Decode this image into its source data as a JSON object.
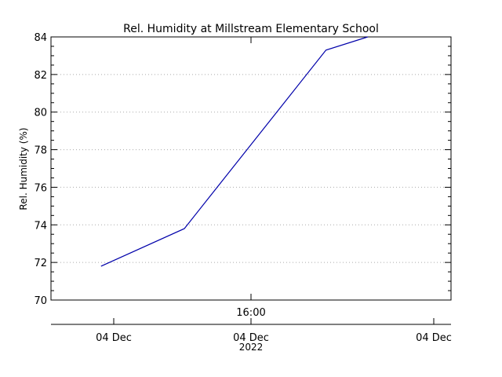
{
  "chart_data": {
    "type": "line",
    "title": "Rel. Humidity at Millstream Elementary School",
    "ylabel": "Rel. Humidity (%)",
    "ylim": [
      70,
      84
    ],
    "yticks": [
      70,
      72,
      74,
      76,
      78,
      80,
      82,
      84
    ],
    "ytick_labels": [
      "70",
      "72",
      "74",
      "76",
      "78",
      "80",
      "82",
      "84"
    ],
    "grid": true,
    "xlim": [
      "2022-12-04 14:00",
      "2022-12-04 18:00"
    ],
    "x_time_ticks": [
      {
        "t": "2022-12-04 16:00",
        "label": "16:00"
      }
    ],
    "x_date_ticks": [
      {
        "t": "2022-12-04 14:00",
        "label": "04 Dec"
      },
      {
        "t": "2022-12-04 16:00",
        "label": "04 Dec"
      },
      {
        "t": "2022-12-04 18:00",
        "label": "04 Dec"
      }
    ],
    "year_label": "2022",
    "series": [
      {
        "color": "#0000aa",
        "x": [
          "2022-12-04 14:30",
          "2022-12-04 15:20",
          "2022-12-04 16:45",
          "2022-12-04 17:10"
        ],
        "values": [
          71.8,
          73.8,
          83.3,
          84.0
        ]
      }
    ]
  }
}
